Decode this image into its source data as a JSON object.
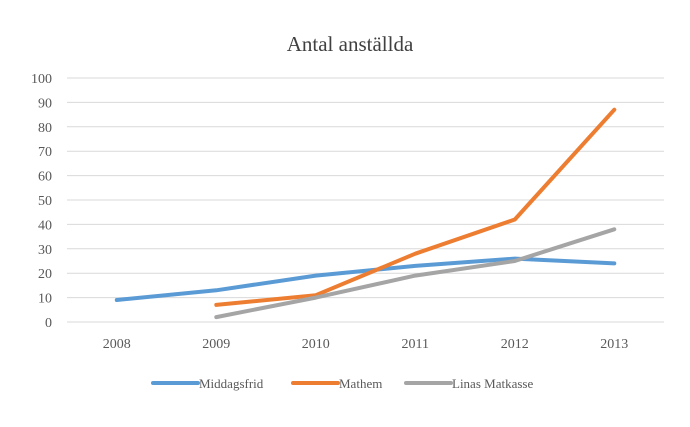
{
  "chart_data": {
    "type": "line",
    "title": "Antal anställda",
    "xlabel": "",
    "ylabel": "",
    "categories": [
      "2008",
      "2009",
      "2010",
      "2011",
      "2012",
      "2013"
    ],
    "ylim": [
      0,
      100
    ],
    "yticks": [
      0,
      10,
      20,
      30,
      40,
      50,
      60,
      70,
      80,
      90,
      100
    ],
    "grid": true,
    "legend_position": "bottom",
    "series": [
      {
        "name": "Middagsfrid",
        "color": "#5b9bd5",
        "values": [
          9,
          13,
          19,
          23,
          26,
          24
        ]
      },
      {
        "name": "Mathem",
        "color": "#ed7d31",
        "values": [
          null,
          7,
          11,
          28,
          42,
          87
        ]
      },
      {
        "name": "Linas Matkasse",
        "color": "#a5a5a5",
        "values": [
          null,
          2,
          10,
          19,
          25,
          38
        ]
      }
    ]
  }
}
